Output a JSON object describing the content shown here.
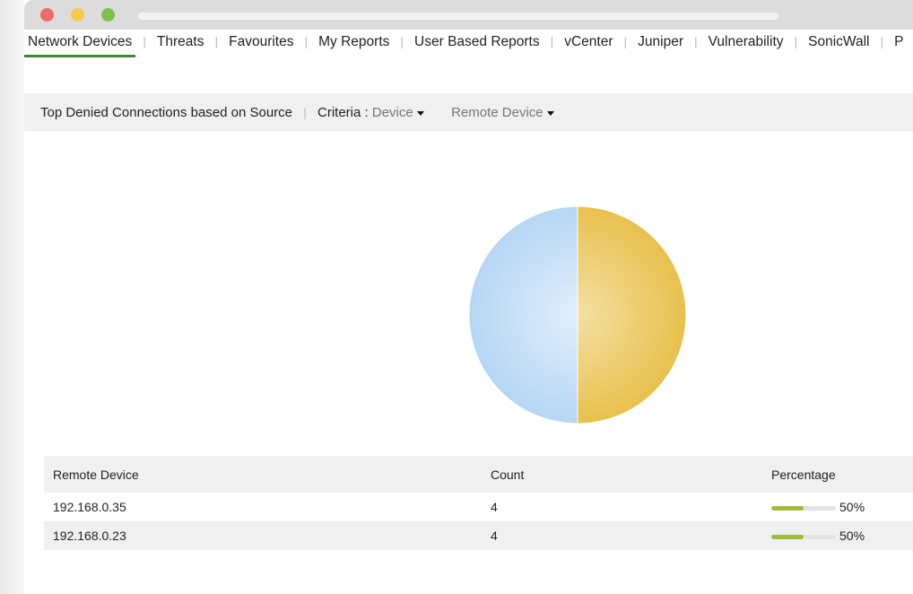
{
  "tabs": [
    {
      "label": "Network Devices",
      "active": true
    },
    {
      "label": "Threats"
    },
    {
      "label": "Favourites"
    },
    {
      "label": "My Reports"
    },
    {
      "label": "User Based Reports"
    },
    {
      "label": "vCenter"
    },
    {
      "label": "Juniper"
    },
    {
      "label": "Vulnerability"
    },
    {
      "label": "SonicWall"
    },
    {
      "label": "P"
    }
  ],
  "toolbar": {
    "title": "Top Denied Connections based on Source",
    "criteria_label": "Criteria :",
    "criteria_value": "Device",
    "group_by": "Remote Device"
  },
  "chart_data": {
    "type": "pie",
    "slices": [
      {
        "label": "192.168.0.35",
        "value": 4,
        "color": "#e8c252"
      },
      {
        "label": "192.168.0.23",
        "value": 4,
        "color": "#b8d8f5"
      }
    ]
  },
  "table": {
    "headers": [
      "Remote Device",
      "Count",
      "Percentage"
    ],
    "rows": [
      {
        "device": "192.168.0.35",
        "count": "4",
        "percentage": "50%",
        "pct": 50
      },
      {
        "device": "192.168.0.23",
        "count": "4",
        "percentage": "50%",
        "pct": 50
      }
    ]
  },
  "colors": {
    "accent": "#3c8a2e",
    "bar": "#9fbb3a"
  }
}
